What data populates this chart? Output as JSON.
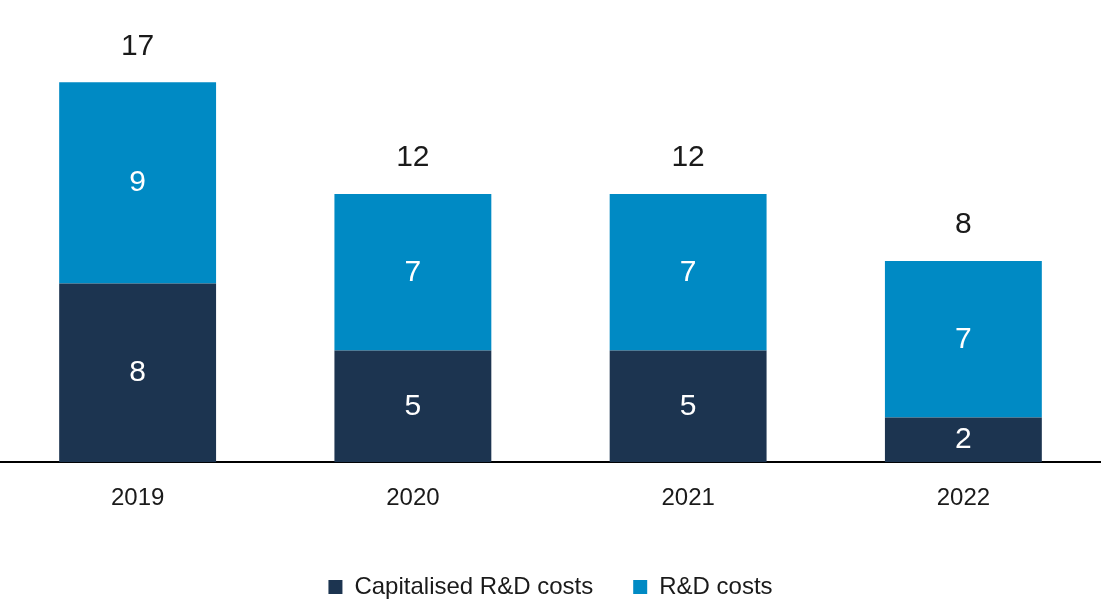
{
  "chart_data": {
    "type": "bar",
    "stacked": true,
    "categories": [
      "2019",
      "2020",
      "2021",
      "2022"
    ],
    "series": [
      {
        "name": "Capitalised R&D costs",
        "color": "#1c3450",
        "values": [
          8,
          5,
          5,
          2
        ]
      },
      {
        "name": "R&D costs",
        "color": "#008ac4",
        "values": [
          9,
          7,
          7,
          7
        ]
      }
    ],
    "totals": [
      "17",
      "12",
      "12",
      "8"
    ],
    "data_labels": true,
    "legend": "bottom",
    "grid": false,
    "tick_labels": "x"
  }
}
